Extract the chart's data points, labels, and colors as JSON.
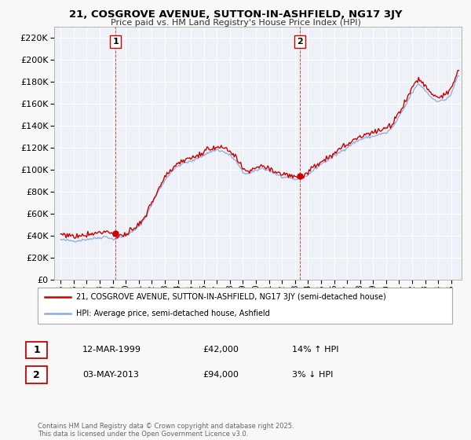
{
  "title": "21, COSGROVE AVENUE, SUTTON-IN-ASHFIELD, NG17 3JY",
  "subtitle": "Price paid vs. HM Land Registry's House Price Index (HPI)",
  "legend_line1": "21, COSGROVE AVENUE, SUTTON-IN-ASHFIELD, NG17 3JY (semi-detached house)",
  "legend_line2": "HPI: Average price, semi-detached house, Ashfield",
  "footer": "Contains HM Land Registry data © Crown copyright and database right 2025.\nThis data is licensed under the Open Government Licence v3.0.",
  "purchase1_date": "12-MAR-1999",
  "purchase1_price": 42000,
  "purchase1_year": 1999.21,
  "purchase2_date": "03-MAY-2013",
  "purchase2_price": 94000,
  "purchase2_year": 2013.37,
  "sale_color": "#cc0000",
  "hpi_color": "#88aadd",
  "marker_color": "#cc0000",
  "purchase1_hpi_text": "14% ↑ HPI",
  "purchase2_hpi_text": "3% ↓ HPI",
  "ylim_max": 230000,
  "ylim_min": 0,
  "xlim_min": 1994.5,
  "xlim_max": 2025.8,
  "background_color": "#f8f8f8",
  "plot_bg_color": "#eef2f8",
  "grid_color": "#ffffff"
}
